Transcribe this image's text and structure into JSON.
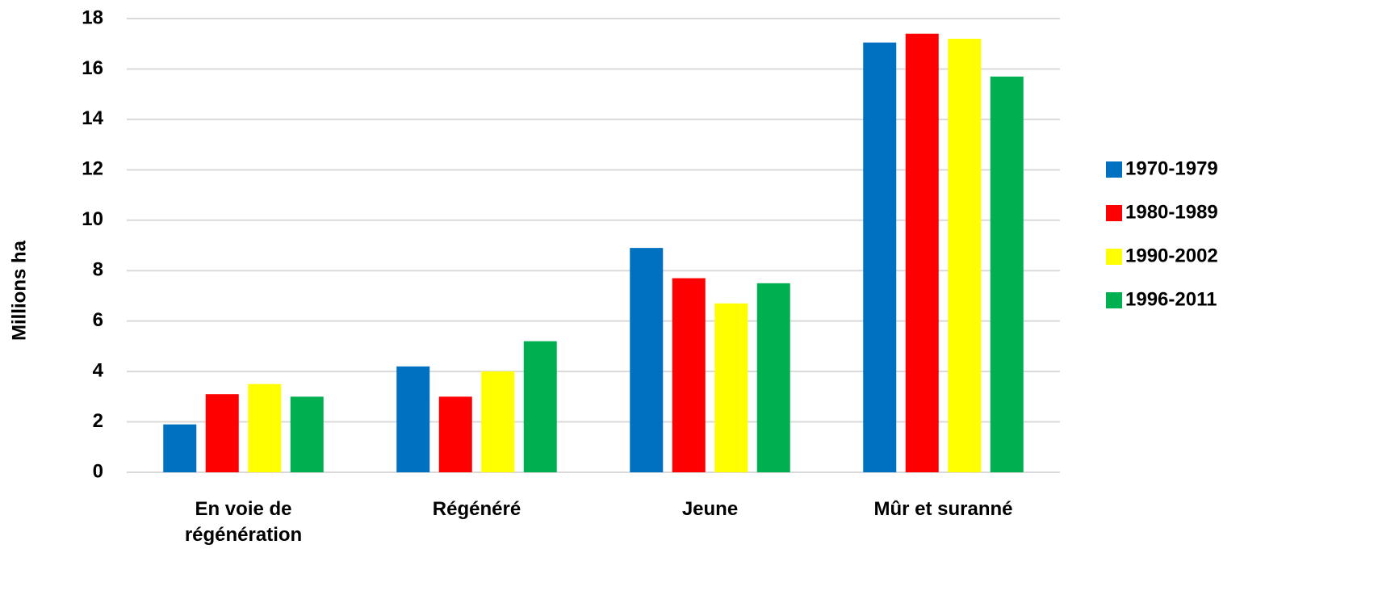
{
  "chart_data": {
    "type": "bar",
    "y_label": "Millions ha",
    "categories": [
      "En voie de régénération",
      "Régénéré",
      "Jeune",
      "Mûr et suranné"
    ],
    "series": [
      {
        "name": "1970-1979",
        "color": "#0070c0",
        "values": [
          1.9,
          4.2,
          8.9,
          17.05
        ]
      },
      {
        "name": "1980-1989",
        "color": "#ff0000",
        "values": [
          3.1,
          3.0,
          7.7,
          17.4
        ]
      },
      {
        "name": "1990-2002",
        "color": "#ffff00",
        "values": [
          3.5,
          4.0,
          6.7,
          17.2
        ]
      },
      {
        "name": "1996-2011",
        "color": "#00b050",
        "values": [
          3.0,
          5.2,
          7.5,
          15.7
        ]
      }
    ],
    "ylim": [
      0,
      18
    ],
    "yticks": [
      0,
      2,
      4,
      6,
      8,
      10,
      12,
      14,
      16,
      18
    ],
    "grid": true,
    "legend": "right"
  }
}
